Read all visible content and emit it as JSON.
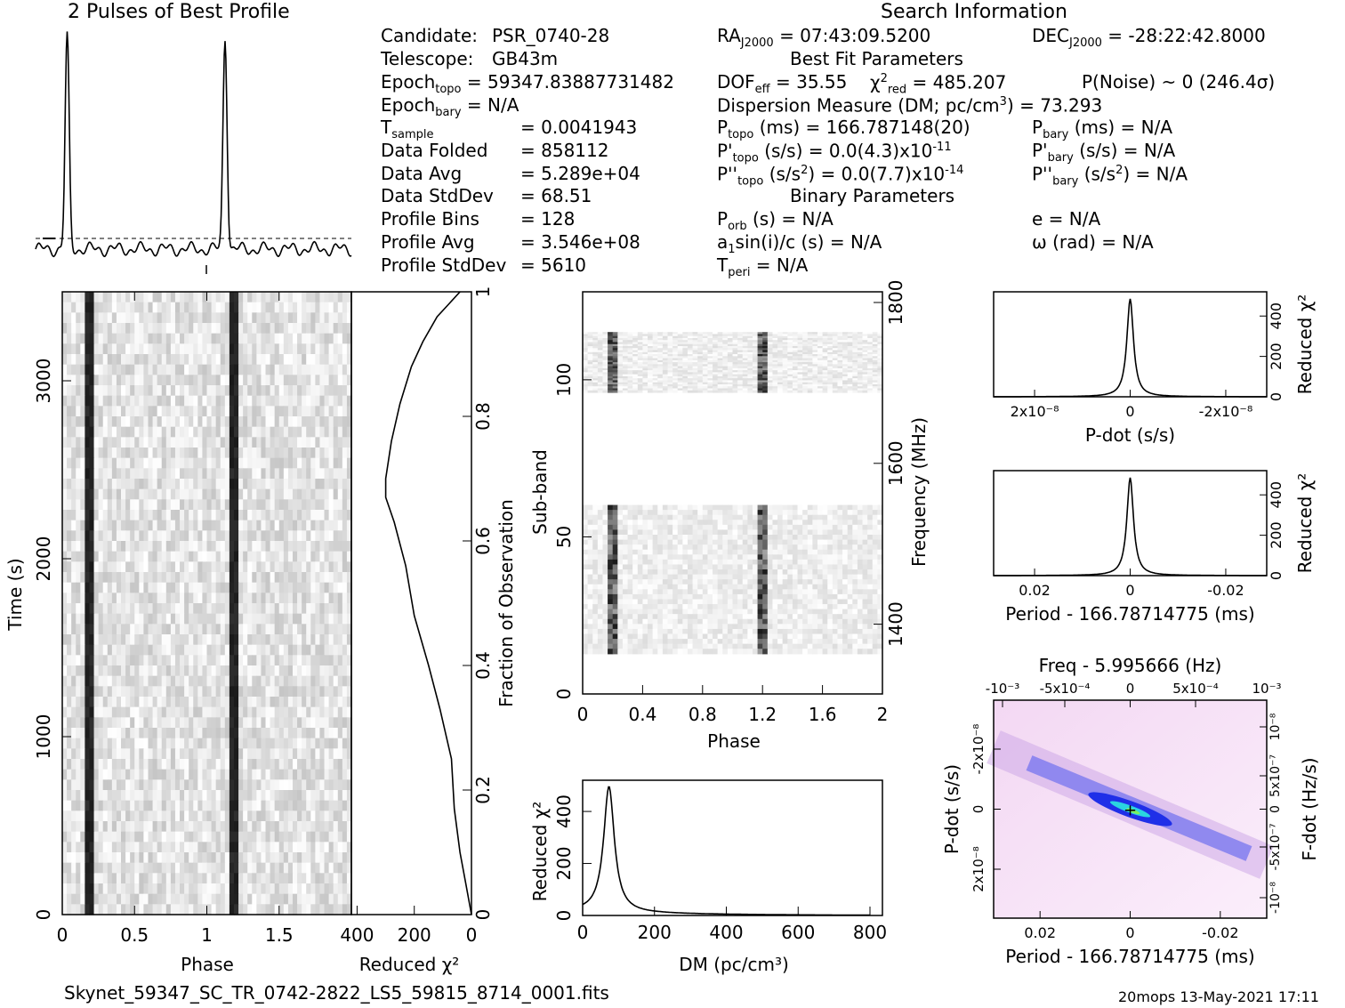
{
  "profile_title": "2 Pulses of Best Profile",
  "search_info_title": "Search Information",
  "info": {
    "candidate_label": "Candidate:",
    "candidate": "PSR_0740-28",
    "telescope_label": "Telescope:",
    "telescope": "GB43m",
    "epoch_topo_label": "Epoch",
    "epoch_topo_sub": "topo",
    "epoch_topo": "= 59347.83887731482",
    "epoch_bary_label": "Epoch",
    "epoch_bary_sub": "bary",
    "epoch_bary": "= N/A",
    "t_sample_label": "T",
    "t_sample_sub": "sample",
    "t_sample": "=   0.0041943",
    "data_folded_label": "Data Folded",
    "data_folded": "=   858112",
    "data_avg_label": "Data Avg",
    "data_avg": "=   5.289e+04",
    "data_stddev_label": "Data StdDev",
    "data_stddev": "=   68.51",
    "profile_bins_label": "Profile Bins",
    "profile_bins": "=   128",
    "profile_avg_label": "Profile Avg",
    "profile_avg": "=   3.546e+08",
    "profile_stddev_label": "Profile StdDev",
    "profile_stddev": "=   5610"
  },
  "search": {
    "ra": "= 07:43:09.5200",
    "ra_label": "RA",
    "ra_sub": "J2000",
    "dec": "= -28:22:42.8000",
    "dec_label": "DEC",
    "dec_sub": "J2000",
    "best_fit_title": "Best Fit Parameters",
    "dof_label": "DOF",
    "dof_sub": "eff",
    "dof": "= 35.55",
    "chi2_label": "χ",
    "chi2_sup": "2",
    "chi2_sub": "red",
    "chi2": "= 485.207",
    "pnoise": "P(Noise) ~ 0    (246.4σ)",
    "dm_line": "Dispersion Measure (DM; pc/cm",
    "dm_line_sup": "3",
    "dm_line_end": ") = 73.293",
    "p_topo_label": "P",
    "p_topo_sub": "topo",
    "p_topo": "(ms) =  166.787148(20)",
    "p_bary_label": "P",
    "p_bary_sub": "bary",
    "p_bary": "(ms) = N/A",
    "pd_topo_label": "P'",
    "pd_topo_sub": "topo",
    "pd_topo": "(s/s) = 0.0(4.3)x10",
    "pd_topo_exp": "-11",
    "pd_bary_label": "P'",
    "pd_bary_sub": "bary",
    "pd_bary": "(s/s) = N/A",
    "pdd_topo_label": "P''",
    "pdd_topo_sub": "topo",
    "pdd_topo": "(s/s",
    "pdd_topo_sup": "2",
    "pdd_topo_end": ") = 0.0(7.7)x10",
    "pdd_topo_exp": "-14",
    "pdd_bary_label": "P''",
    "pdd_bary_sub": "bary",
    "pdd_bary": "(s/s",
    "pdd_bary_sup": "2",
    "pdd_bary_end": ") = N/A",
    "binary_title": "Binary Parameters",
    "porb_label": "P",
    "porb_sub": "orb",
    "porb": "(s) = N/A",
    "e": "e = N/A",
    "a1_label": "a",
    "a1_sub": "1",
    "a1": "sin(i)/c (s) = N/A",
    "omega": "ω (rad) = N/A",
    "tperi_label": "T",
    "tperi_sub": "peri",
    "tperi": "= N/A"
  },
  "footer": {
    "filename": "Skynet_59347_SC_TR_0742-2822_LS5_59815_8714_0001.fits",
    "stamp": "20mops 13-May-2021 17:11"
  },
  "chart_data": [
    {
      "name": "profile",
      "type": "line",
      "title": "2 Pulses of Best Profile",
      "phase_peaks": [
        0.2,
        1.2
      ],
      "xlim": [
        0,
        2
      ]
    },
    {
      "name": "time_phase",
      "type": "heatmap",
      "xlabel": "Phase",
      "ylabel": "Time (s)",
      "xlim": [
        0,
        2
      ],
      "ylim": [
        0,
        3500
      ],
      "xticks": [
        0,
        0.5,
        1,
        1.5
      ],
      "yticks": [
        0,
        1000,
        2000,
        3000
      ],
      "pulse_phases": [
        0.2,
        1.2
      ]
    },
    {
      "name": "time_chi2",
      "type": "line",
      "xlabel": "Reduced χ²",
      "ylabel": "Fraction of Observation",
      "xticks": [
        400,
        200,
        0
      ],
      "yticks": [
        0,
        0.2,
        0.4,
        0.6,
        0.8,
        1
      ],
      "x_reversed": true,
      "points": [
        [
          0,
          0
        ],
        [
          20,
          0.05
        ],
        [
          40,
          0.1
        ],
        [
          60,
          0.17
        ],
        [
          70,
          0.25
        ],
        [
          110,
          0.33
        ],
        [
          150,
          0.4
        ],
        [
          200,
          0.48
        ],
        [
          230,
          0.56
        ],
        [
          270,
          0.63
        ],
        [
          300,
          0.67
        ],
        [
          300,
          0.7
        ],
        [
          280,
          0.76
        ],
        [
          250,
          0.82
        ],
        [
          210,
          0.88
        ],
        [
          170,
          0.92
        ],
        [
          120,
          0.96
        ],
        [
          80,
          0.98
        ],
        [
          40,
          1
        ]
      ]
    },
    {
      "name": "subband_phase",
      "type": "heatmap",
      "xlabel": "Phase",
      "ylabel": "Sub-band",
      "y2label": "Frequency (MHz)",
      "xlim": [
        0,
        2
      ],
      "xticks": [
        0,
        0.4,
        0.8,
        1.2,
        1.6,
        2
      ],
      "yticks": [
        0,
        50,
        100
      ],
      "y2ticks": [
        1400,
        1600,
        1800
      ],
      "pulse_phases": [
        0.2,
        1.2
      ]
    },
    {
      "name": "dm_chi2",
      "type": "line",
      "xlabel": "DM (pc/cm³)",
      "ylabel": "Reduced χ²",
      "xlim": [
        0,
        800
      ],
      "ylim": [
        0,
        500
      ],
      "xticks": [
        0,
        200,
        400,
        600,
        800
      ],
      "yticks": [
        0,
        200,
        400
      ],
      "peak": [
        73.293,
        485
      ]
    },
    {
      "name": "pdot_chi2",
      "type": "line",
      "xlabel": "P-dot (s/s)",
      "ylabel": "Reduced χ²",
      "xticks": [
        "2x10⁻⁸",
        "0",
        "-2x10⁻⁸"
      ],
      "yticks": [
        0,
        200,
        400
      ],
      "peak": [
        0,
        485
      ]
    },
    {
      "name": "period_chi2",
      "type": "line",
      "xlabel": "Period - 166.78714775 (ms)",
      "ylabel": "Reduced χ²",
      "xticks": [
        0.02,
        0,
        -0.02
      ],
      "yticks": [
        0,
        200,
        400
      ],
      "peak": [
        0,
        485
      ]
    },
    {
      "name": "period_pdot",
      "type": "heatmap",
      "xlabel": "Period - 166.78714775 (ms)",
      "ylabel": "P-dot (s/s)",
      "x2label": "Freq - 5.995666 (Hz)",
      "y2label": "F-dot (Hz/s)",
      "xticks": [
        0.02,
        0,
        -0.02
      ],
      "x2ticks": [
        "-10⁻³",
        "-5x10⁻⁴",
        "0",
        "5x10⁻⁴",
        "10⁻³"
      ],
      "yticks": [
        "-2x10⁻⁸",
        "0",
        "2x10⁻⁸"
      ],
      "y2ticks": [
        "10⁻⁸",
        "5x10⁻⁷",
        "0",
        "-5x10⁻⁷",
        "-10⁻⁸"
      ]
    }
  ]
}
